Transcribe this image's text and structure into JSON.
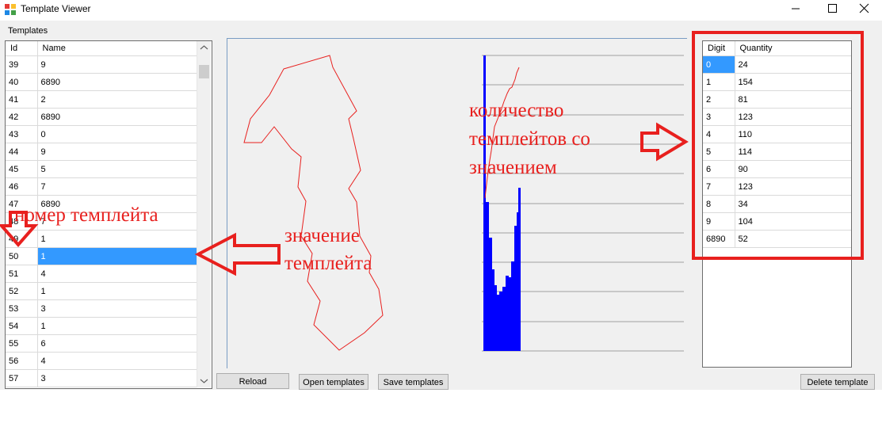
{
  "window": {
    "title": "Template Viewer"
  },
  "templates_label": "Templates",
  "templates_grid": {
    "columns": [
      "Id",
      "Name"
    ],
    "rows": [
      [
        "39",
        "9"
      ],
      [
        "40",
        "6890"
      ],
      [
        "41",
        "2"
      ],
      [
        "42",
        "6890"
      ],
      [
        "43",
        "0"
      ],
      [
        "44",
        "9"
      ],
      [
        "45",
        "5"
      ],
      [
        "46",
        "7"
      ],
      [
        "47",
        "6890"
      ],
      [
        "48",
        "7"
      ],
      [
        "49",
        "1"
      ],
      [
        "50",
        "1"
      ],
      [
        "51",
        "4"
      ],
      [
        "52",
        "1"
      ],
      [
        "53",
        "3"
      ],
      [
        "54",
        "1"
      ],
      [
        "55",
        "6"
      ],
      [
        "56",
        "4"
      ],
      [
        "57",
        "3"
      ]
    ],
    "selected_row_index": 11
  },
  "digits_grid": {
    "columns": [
      "Digit",
      "Quantity"
    ],
    "rows": [
      [
        "0",
        "24"
      ],
      [
        "1",
        "154"
      ],
      [
        "2",
        "81"
      ],
      [
        "3",
        "123"
      ],
      [
        "4",
        "110"
      ],
      [
        "5",
        "114"
      ],
      [
        "6",
        "90"
      ],
      [
        "7",
        "123"
      ],
      [
        "8",
        "34"
      ],
      [
        "9",
        "104"
      ],
      [
        "6890",
        "52"
      ]
    ],
    "selected_row_index": 0
  },
  "buttons": {
    "reload": "Reload",
    "open_templates": "Open templates",
    "save_templates": "Save templates",
    "delete_template": "Delete template"
  },
  "annotations": {
    "template_number": "номер темплейта",
    "template_value_line1": "значение",
    "template_value_line2": "темплейта",
    "count_line1": "количество",
    "count_line2": "темплейтов со",
    "count_line3": "значением"
  },
  "colors": {
    "annotation_red": "#e8201e",
    "selection_blue": "#3399ff",
    "histogram_blue": "#0000ff"
  },
  "icons": {
    "app": "app-icon",
    "minimize": "minimize-icon",
    "maximize": "maximize-icon",
    "close": "close-icon"
  }
}
